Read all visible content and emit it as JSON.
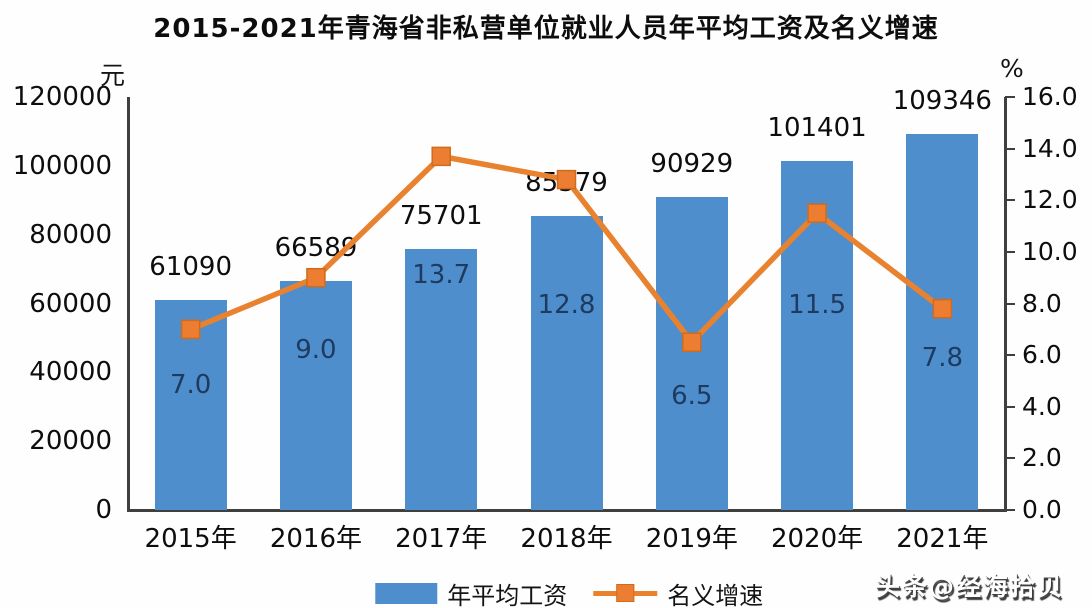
{
  "title": "2015-2021年青海省非私营单位就业人员年平均工资及名义增速",
  "watermark": "头条@经海拾贝",
  "chart_data": {
    "type": "bar",
    "subtype": "bar-line-combo",
    "title": "2015-2021年青海省非私营单位就业人员年平均工资及名义增速",
    "categories": [
      "2015年",
      "2016年",
      "2017年",
      "2018年",
      "2019年",
      "2020年",
      "2021年"
    ],
    "series": [
      {
        "name": "年平均工资",
        "type": "bar",
        "axis": "left",
        "unit": "元",
        "color": "#4e8ecd",
        "values": [
          61090,
          66589,
          75701,
          85379,
          90929,
          101401,
          109346
        ]
      },
      {
        "name": "名义增速",
        "type": "line",
        "axis": "right",
        "unit": "%",
        "color": "#e8822e",
        "marker_color": "#ed7d31",
        "marker_shape": "square",
        "values": [
          7.0,
          9.0,
          13.7,
          12.8,
          6.5,
          11.5,
          7.8
        ]
      }
    ],
    "left_axis": {
      "label": "元",
      "min": 0,
      "max": 120000,
      "step": 20000,
      "ticks": [
        "120000",
        "100000",
        "80000",
        "60000",
        "40000",
        "20000",
        "0"
      ]
    },
    "right_axis": {
      "label": "%",
      "min": 0,
      "max": 16,
      "step": 2,
      "ticks": [
        "16.0",
        "14.0",
        "12.0",
        "10.0",
        "8.0",
        "6.0",
        "4.0",
        "2.0",
        "0.0"
      ]
    },
    "grid": false,
    "legend_position": "bottom",
    "colors": {
      "bar": "#4e8ecd",
      "line": "#e8822e",
      "marker": "#ed7d31",
      "bar_label": "#1e3a5f",
      "value_label": "#0d0d0d",
      "axis": "#3f3f3f"
    }
  }
}
